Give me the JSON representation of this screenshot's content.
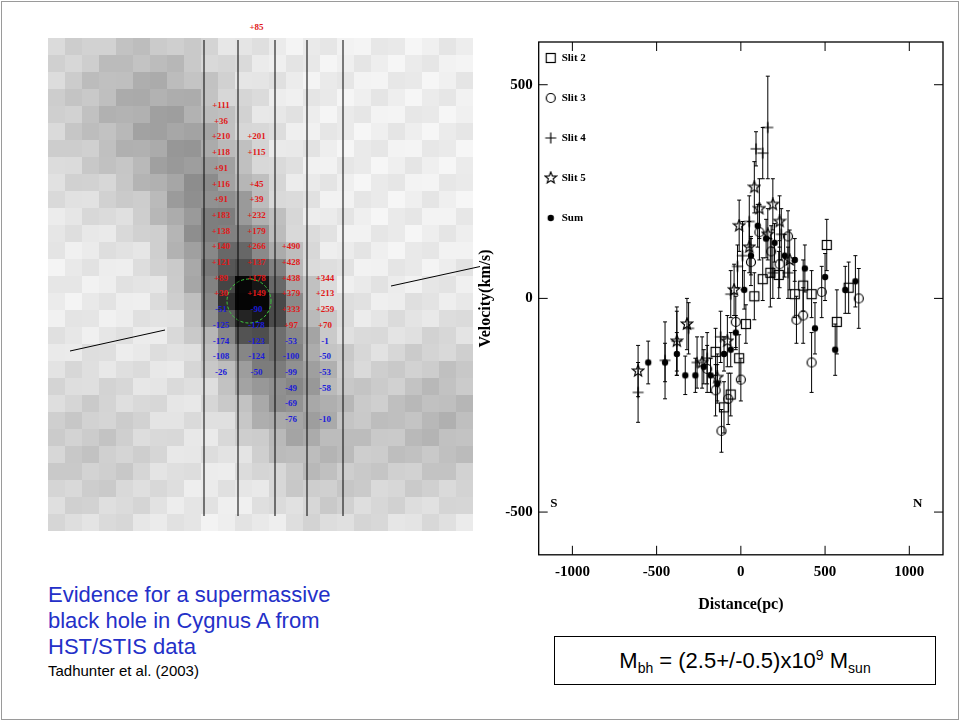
{
  "chart_data": {
    "type": "scatter",
    "xlabel": "Distance(pc)",
    "ylabel": "Velocity(km/s)",
    "xlim": [
      -1200,
      1200
    ],
    "xticks": [
      -1000,
      -500,
      0,
      500,
      1000
    ],
    "ylim": [
      -600,
      600
    ],
    "yticks": [
      -500,
      0,
      500
    ],
    "grid": false,
    "legend": "top-left",
    "annotations": [
      {
        "text": "S",
        "x": -1110,
        "y": -480
      },
      {
        "text": "N",
        "x": 1050,
        "y": -480
      }
    ],
    "series": [
      {
        "name": "Slit 2",
        "marker": "square",
        "color": "#000000",
        "x": [
          -150,
          -100,
          -60,
          -10,
          30,
          80,
          130,
          175,
          225,
          320,
          370,
          420,
          510,
          570,
          640
        ],
        "values": [
          -125,
          -255,
          -225,
          -140,
          -60,
          5,
          45,
          60,
          55,
          10,
          30,
          10,
          125,
          -55,
          25
        ],
        "errors": [
          55,
          60,
          50,
          55,
          45,
          55,
          50,
          80,
          55,
          55,
          60,
          55,
          60,
          75,
          60
        ]
      },
      {
        "name": "Slit 3",
        "marker": "circle",
        "color": "#000000",
        "x": [
          -200,
          -150,
          -115,
          -75,
          -30,
          0,
          60,
          110,
          180,
          230,
          280,
          330,
          370,
          420,
          480,
          700
        ],
        "values": [
          -165,
          -215,
          -310,
          -235,
          -55,
          -190,
          85,
          155,
          110,
          80,
          145,
          -50,
          -40,
          -150,
          15,
          0
        ],
        "errors": [
          55,
          60,
          50,
          60,
          60,
          50,
          55,
          65,
          60,
          55,
          60,
          55,
          65,
          70,
          60,
          70
        ]
      },
      {
        "name": "Slit 4",
        "marker": "plus",
        "color": "#000000",
        "x": [
          -610,
          -450,
          -380,
          -310,
          -260,
          -200,
          -120,
          -60,
          -20,
          10,
          50,
          90,
          130,
          160,
          190,
          240,
          280
        ],
        "values": [
          -220,
          -145,
          -100,
          -70,
          -150,
          -140,
          -90,
          10,
          75,
          100,
          180,
          350,
          340,
          400,
          60,
          150,
          60
        ],
        "errors": [
          70,
          90,
          80,
          60,
          60,
          60,
          60,
          55,
          50,
          80,
          60,
          40,
          60,
          120,
          60,
          60,
          60
        ]
      },
      {
        "name": "Slit 5",
        "marker": "star",
        "color": "#000000",
        "x": [
          -610,
          -380,
          -320,
          -230,
          -140,
          -80,
          -40,
          -10,
          50,
          80,
          110,
          160,
          190,
          230,
          290
        ],
        "values": [
          -170,
          -100,
          -60,
          -150,
          -185,
          -100,
          20,
          170,
          120,
          260,
          210,
          150,
          220,
          180,
          90
        ],
        "errors": [
          60,
          70,
          60,
          60,
          55,
          60,
          60,
          60,
          60,
          60,
          70,
          60,
          60,
          60,
          70
        ]
      },
      {
        "name": "Sum",
        "marker": "dot",
        "color": "#000000",
        "x": [
          -550,
          -450,
          -380,
          -330,
          -270,
          -220,
          -180,
          -140,
          -100,
          -60,
          -30,
          20,
          60,
          100,
          150,
          200,
          260,
          320,
          380,
          440,
          500,
          560,
          620,
          680
        ],
        "values": [
          -150,
          -150,
          -130,
          -180,
          -180,
          -160,
          -180,
          -200,
          -130,
          -120,
          -80,
          20,
          100,
          170,
          140,
          130,
          100,
          90,
          70,
          -70,
          50,
          -120,
          20,
          40
        ],
        "errors": [
          50,
          45,
          50,
          45,
          40,
          40,
          40,
          45,
          40,
          40,
          40,
          45,
          45,
          50,
          45,
          45,
          50,
          50,
          55,
          60,
          55,
          60,
          55,
          60
        ]
      }
    ]
  },
  "image_panel": {
    "rows": [
      [
        null,
        "+85",
        null,
        null
      ],
      [
        null,
        null,
        null,
        null
      ],
      [
        null,
        null,
        null,
        null
      ],
      [
        null,
        null,
        null,
        null
      ],
      [
        null,
        null,
        null,
        null
      ],
      [
        "+111",
        null,
        null,
        null
      ],
      [
        "+36",
        null,
        null,
        null
      ],
      [
        "+210",
        "+201",
        null,
        null
      ],
      [
        "+118",
        "+115",
        null,
        null
      ],
      [
        "+91",
        null,
        null,
        null
      ],
      [
        "+116",
        "+45",
        null,
        null
      ],
      [
        "+91",
        "+39",
        null,
        null
      ],
      [
        "+183",
        "+232",
        null,
        null
      ],
      [
        "+138",
        "+179",
        null,
        null
      ],
      [
        "+140",
        "+266",
        "+490",
        null
      ],
      [
        "+121",
        "+137",
        "+428",
        null
      ],
      [
        "+89",
        "+178",
        "+438",
        "+344"
      ],
      [
        "+30",
        "+149",
        "+379",
        "+213"
      ],
      [
        "-51",
        "-90",
        "+333",
        "+259"
      ],
      [
        "-125",
        "-178",
        "+97",
        "+70"
      ],
      [
        "-174",
        "-123",
        "-53",
        "-1"
      ],
      [
        "-108",
        "-124",
        "-100",
        "-50"
      ],
      [
        "-26",
        "-50",
        "-99",
        "-53"
      ],
      [
        null,
        null,
        "-49",
        "-58"
      ],
      [
        null,
        null,
        "-69",
        null
      ],
      [
        null,
        null,
        "-76",
        "-10"
      ]
    ]
  },
  "caption": "Evidence for a supermassive black hole in Cygnus A from HST/STIS data",
  "citation": "Tadhunter et al. (2003)",
  "mass_box": {
    "symbol": "M",
    "symbol_sub": "bh",
    "equals": " = (2.5+/-0.5)x10",
    "exponent": "9",
    "unit": " M",
    "unit_sub": "sun"
  }
}
